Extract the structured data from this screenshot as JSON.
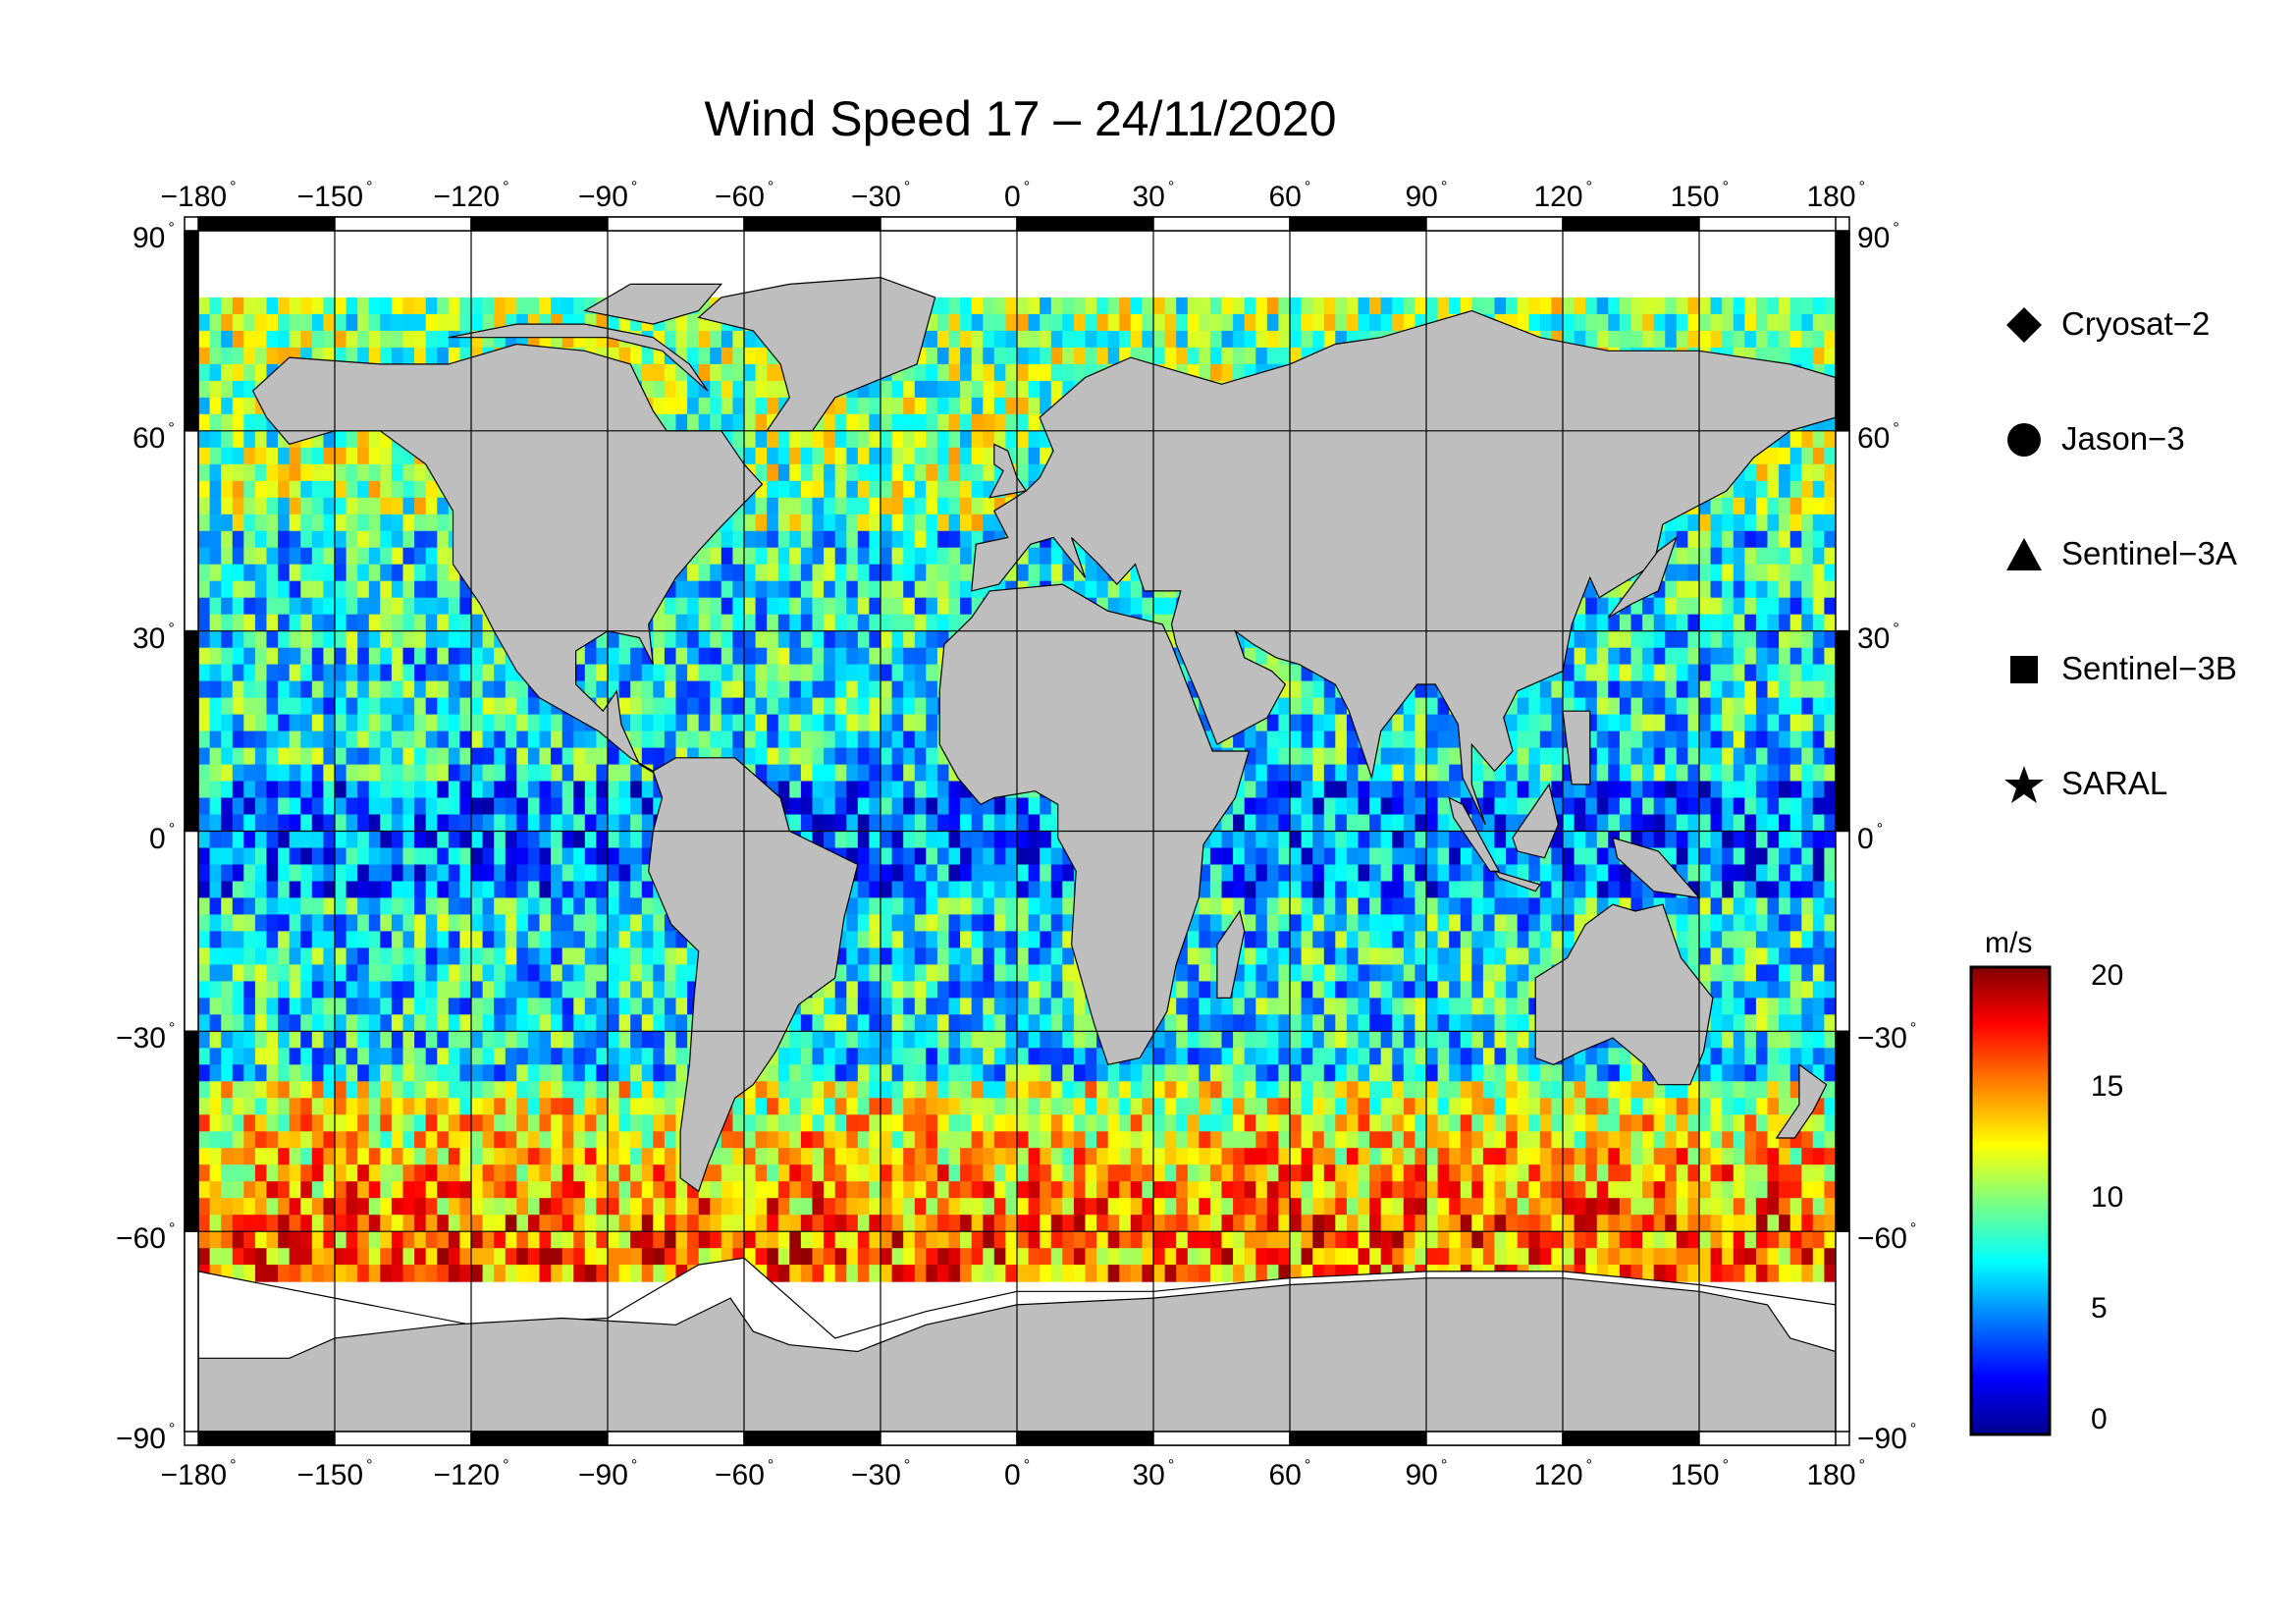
{
  "title": "Wind Speed 17 – 24/11/2020",
  "longitude_ticks": [
    "−180",
    "−150",
    "−120",
    "−90",
    "−60",
    "−30",
    "0",
    "30",
    "60",
    "90",
    "120",
    "150",
    "180"
  ],
  "latitude_ticks": [
    "90",
    "60",
    "30",
    "0",
    "−30",
    "−60",
    "−90"
  ],
  "degree_symbol": "°",
  "legend": [
    {
      "name": "Cryosat−2",
      "icon": "diamond-icon"
    },
    {
      "name": "Jason−3",
      "icon": "circle-icon"
    },
    {
      "name": "Sentinel−3A",
      "icon": "triangle-icon"
    },
    {
      "name": "Sentinel−3B",
      "icon": "square-icon"
    },
    {
      "name": "SARAL",
      "icon": "star-icon"
    }
  ],
  "colorbar": {
    "unit": "m/s",
    "ticks": [
      "20",
      "15",
      "10",
      "5",
      "0"
    ],
    "range": [
      0,
      20
    ],
    "colors": [
      "#00008f",
      "#0000ff",
      "#0080ff",
      "#00ffff",
      "#80ff80",
      "#ffff00",
      "#ff8000",
      "#ff0000",
      "#800000"
    ]
  },
  "colors": {
    "land": "#bebebe",
    "ice": "#ffffff",
    "grid": "#000000"
  }
}
